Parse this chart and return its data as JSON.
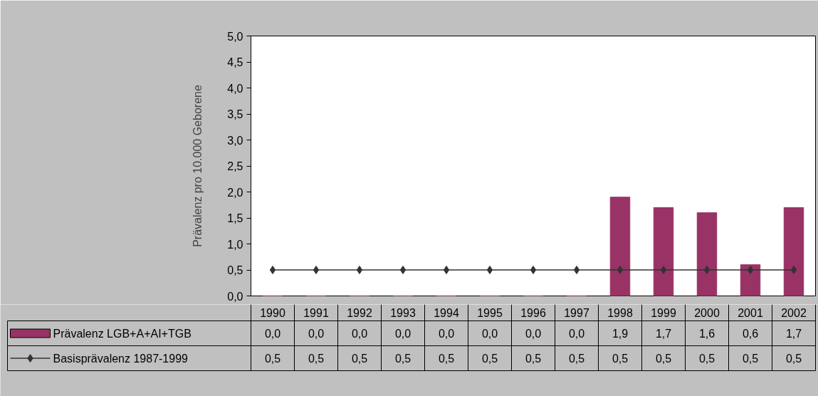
{
  "chart_data": {
    "type": "bar",
    "ylabel": "Prävalenz pro 10.000 Geborene",
    "categories": [
      "1990",
      "1991",
      "1992",
      "1993",
      "1994",
      "1995",
      "1996",
      "1997",
      "1998",
      "1999",
      "2000",
      "2001",
      "2002"
    ],
    "series": [
      {
        "name": "Prävalenz LGB+A+AI+TGB",
        "color": "#993366",
        "values": [
          0.0,
          0.0,
          0.0,
          0.0,
          0.0,
          0.0,
          0.0,
          0.0,
          1.9,
          1.7,
          1.6,
          0.6,
          1.7
        ],
        "value_labels": [
          "0,0",
          "0,0",
          "0,0",
          "0,0",
          "0,0",
          "0,0",
          "0,0",
          "0,0",
          "1,9",
          "1,7",
          "1,6",
          "0,6",
          "1,7"
        ]
      },
      {
        "name": "Basisprävalenz 1987-1999",
        "type": "line",
        "color": "#333333",
        "marker": "diamond",
        "values": [
          0.5,
          0.5,
          0.5,
          0.5,
          0.5,
          0.5,
          0.5,
          0.5,
          0.5,
          0.5,
          0.5,
          0.5,
          0.5
        ],
        "value_labels": [
          "0,5",
          "0,5",
          "0,5",
          "0,5",
          "0,5",
          "0,5",
          "0,5",
          "0,5",
          "0,5",
          "0,5",
          "0,5",
          "0,5",
          "0,5"
        ]
      }
    ],
    "ylim": [
      0,
      5
    ],
    "yticks": [
      {
        "value": 0,
        "label": "0,0"
      },
      {
        "value": 0.5,
        "label": "0,5"
      },
      {
        "value": 1,
        "label": "1,0"
      },
      {
        "value": 1.5,
        "label": "1,5"
      },
      {
        "value": 2,
        "label": "2,0"
      },
      {
        "value": 2.5,
        "label": "2,5"
      },
      {
        "value": 3,
        "label": "3,0"
      },
      {
        "value": 3.5,
        "label": "3,5"
      },
      {
        "value": 4,
        "label": "4,0"
      },
      {
        "value": 4.5,
        "label": "4,5"
      },
      {
        "value": 5,
        "label": "5,0"
      }
    ],
    "grid": false,
    "legend": "bottom"
  }
}
